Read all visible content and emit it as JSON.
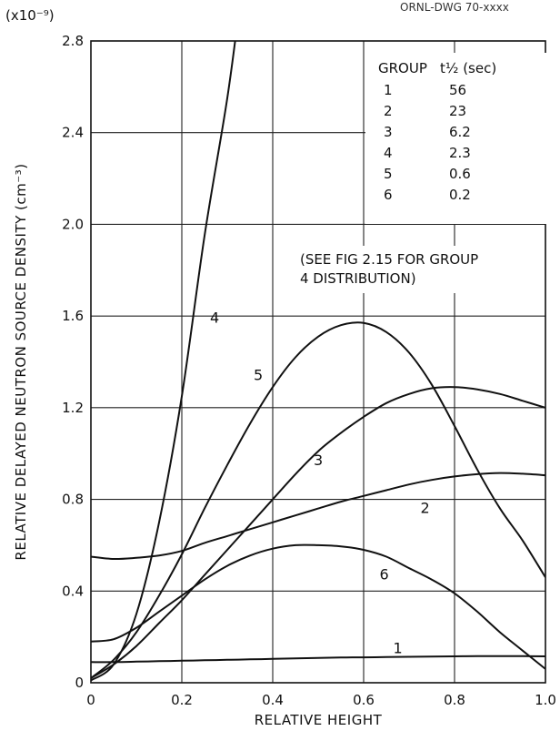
{
  "header_note": "ORNL-DWG 70-xxxx",
  "chart_data": {
    "type": "line",
    "scale_label": "(x10⁻⁹)",
    "xlabel": "RELATIVE HEIGHT",
    "ylabel": "RELATIVE DELAYED NEUTRON SOURCE DENSITY (cm⁻³)",
    "xlim": [
      0,
      1.0
    ],
    "ylim": [
      0,
      2.8
    ],
    "grid": true,
    "x_ticks": [
      "0",
      "0.2",
      "0.4",
      "0.6",
      "0.8",
      "1.0"
    ],
    "y_ticks": [
      "0",
      "0.4",
      "0.8",
      "1.2",
      "1.6",
      "2.0",
      "2.4",
      "2.8"
    ],
    "x": [
      0,
      0.05,
      0.1,
      0.15,
      0.2,
      0.25,
      0.3,
      0.35,
      0.4,
      0.45,
      0.5,
      0.55,
      0.6,
      0.65,
      0.7,
      0.75,
      0.8,
      0.85,
      0.9,
      0.95,
      1.0
    ],
    "series": [
      {
        "name": "1",
        "label_at": [
          0.665,
          0.13
        ],
        "values": [
          0.09,
          0.09,
          0.092,
          0.094,
          0.096,
          0.098,
          0.1,
          0.102,
          0.104,
          0.106,
          0.108,
          0.11,
          0.111,
          0.112,
          0.113,
          0.114,
          0.115,
          0.116,
          0.116,
          0.116,
          0.115
        ]
      },
      {
        "name": "2",
        "label_at": [
          0.725,
          0.74
        ],
        "values": [
          0.55,
          0.54,
          0.545,
          0.555,
          0.575,
          0.61,
          0.64,
          0.67,
          0.7,
          0.73,
          0.76,
          0.79,
          0.815,
          0.84,
          0.865,
          0.885,
          0.9,
          0.91,
          0.915,
          0.912,
          0.905
        ]
      },
      {
        "name": "3",
        "label_at": [
          0.49,
          0.95
        ],
        "values": [
          0.02,
          0.08,
          0.16,
          0.26,
          0.36,
          0.47,
          0.58,
          0.69,
          0.8,
          0.91,
          1.01,
          1.09,
          1.16,
          1.22,
          1.26,
          1.285,
          1.29,
          1.28,
          1.26,
          1.23,
          1.2
        ]
      },
      {
        "name": "4",
        "label_at": [
          0.262,
          1.57
        ],
        "values": [
          0.01,
          0.08,
          0.3,
          0.7,
          1.25,
          1.95,
          2.55,
          3.0
        ],
        "x": [
          0.0,
          0.05,
          0.1,
          0.15,
          0.2,
          0.25,
          0.3,
          0.33
        ]
      },
      {
        "name": "5",
        "label_at": [
          0.358,
          1.32
        ],
        "values": [
          0.02,
          0.1,
          0.22,
          0.38,
          0.56,
          0.76,
          0.95,
          1.13,
          1.29,
          1.42,
          1.51,
          1.56,
          1.57,
          1.53,
          1.44,
          1.3,
          1.12,
          0.93,
          0.76,
          0.62,
          0.46
        ]
      },
      {
        "name": "6",
        "label_at": [
          0.635,
          0.45
        ],
        "values": [
          0.18,
          0.19,
          0.24,
          0.31,
          0.38,
          0.45,
          0.51,
          0.555,
          0.585,
          0.6,
          0.6,
          0.595,
          0.58,
          0.55,
          0.5,
          0.45,
          0.39,
          0.31,
          0.22,
          0.14,
          0.06
        ]
      }
    ],
    "legend": {
      "placement": "top-right",
      "header_group": "GROUP",
      "header_half_life": "t½ (sec)",
      "rows": [
        {
          "group": "1",
          "half_life": "56"
        },
        {
          "group": "2",
          "half_life": "23"
        },
        {
          "group": "3",
          "half_life": "6.2"
        },
        {
          "group": "4",
          "half_life": "2.3"
        },
        {
          "group": "5",
          "half_life": "0.6"
        },
        {
          "group": "6",
          "half_life": "0.2"
        }
      ],
      "note_line1": "(SEE FIG 2.15 FOR GROUP",
      "note_line2": "4 DISTRIBUTION)"
    }
  }
}
